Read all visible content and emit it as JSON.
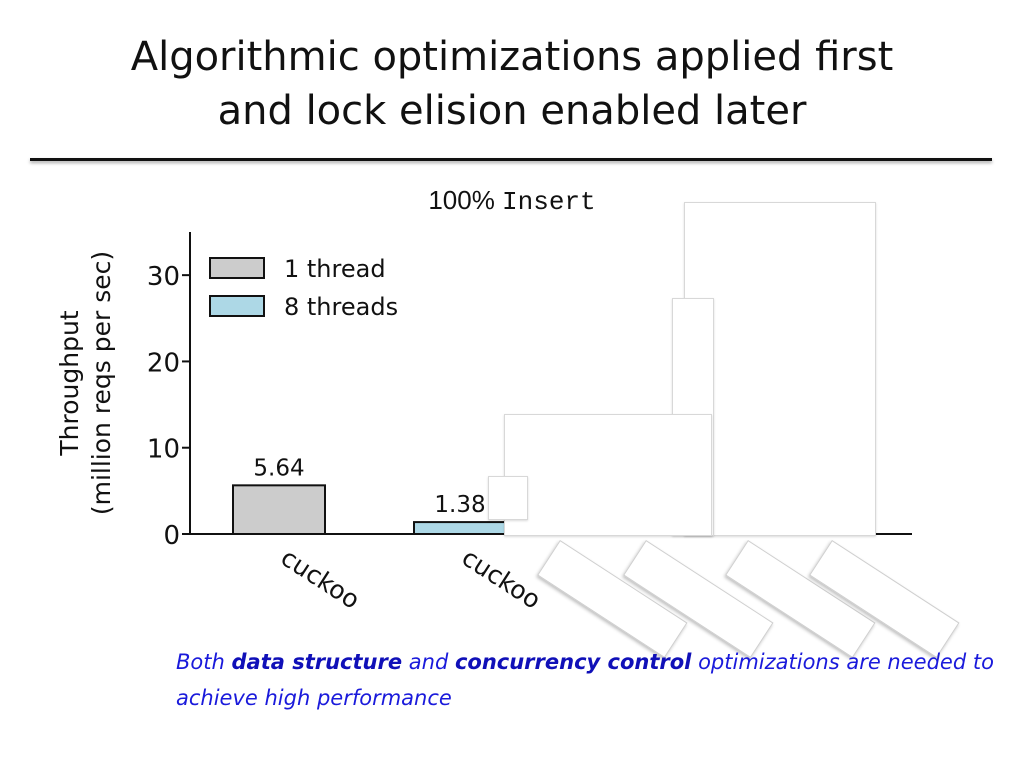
{
  "slide": {
    "title_line1": "Algorithmic optimizations applied first",
    "title_line2": "and lock elision enabled later",
    "caption": {
      "part1": "Both ",
      "bold1": "data structure",
      "part2": " and ",
      "bold2": "concurrency control",
      "part3": " optimizations are needed to achieve high performance"
    }
  },
  "chart_data": {
    "type": "bar",
    "title_prefix": "100%",
    "title_mono": "Insert",
    "ylabel_line1": "Throughput",
    "ylabel_line2": "(million reqs per sec)",
    "ylim": [
      0,
      35
    ],
    "yticks": [
      0,
      10,
      20,
      30
    ],
    "legend_placement": "top-left",
    "grid": false,
    "categories": [
      "cuckoo",
      "cuckoo"
    ],
    "series": [
      {
        "name": "1 thread",
        "color": "#cccccc",
        "values": [
          5.64,
          null
        ]
      },
      {
        "name": "8 threads",
        "color": "#add8e6",
        "values": [
          null,
          1.38
        ]
      }
    ],
    "data_labels": [
      "5.64",
      "1.38"
    ]
  }
}
